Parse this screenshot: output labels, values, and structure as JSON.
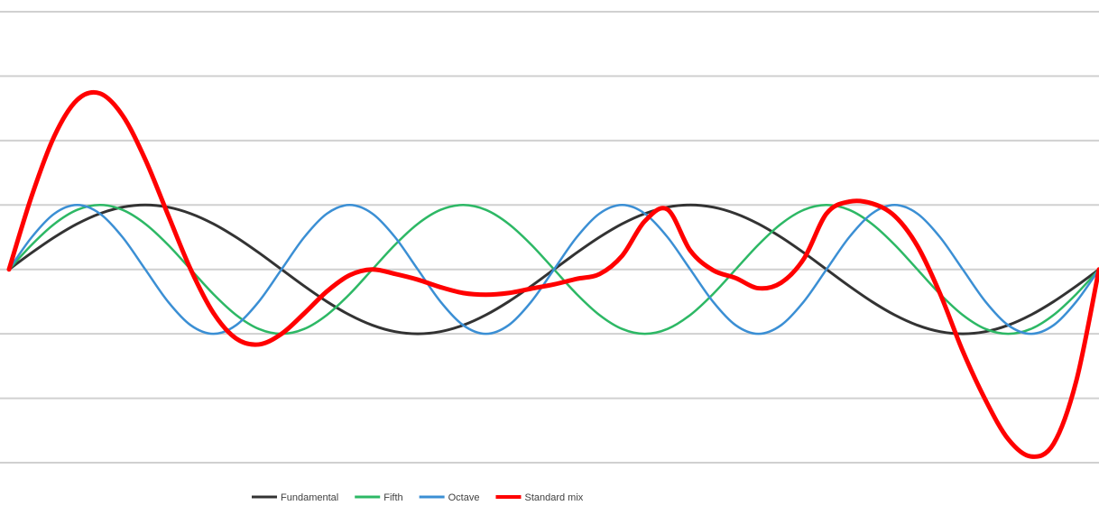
{
  "chart_data": {
    "type": "line",
    "title": "",
    "xlabel": "",
    "ylabel": "",
    "x": [
      0,
      15,
      30,
      45,
      60,
      75,
      90,
      105,
      120,
      135,
      150,
      165,
      180,
      195,
      210,
      225,
      240,
      255,
      270,
      285,
      300,
      315,
      330,
      345,
      360,
      375,
      390,
      405,
      420,
      435,
      450,
      465,
      480,
      495,
      510,
      525,
      540,
      555,
      570,
      585,
      600,
      615,
      630,
      645,
      660,
      675,
      690,
      705,
      720
    ],
    "xlim": [
      0,
      720
    ],
    "ylim": [
      -3,
      4
    ],
    "y_gridlines": [
      -3,
      -2,
      -1,
      0,
      1,
      2,
      3,
      4
    ],
    "grid": true,
    "legend_position": "bottom",
    "series": [
      {
        "name": "Fundamental",
        "color": "#333333",
        "width": 3,
        "values": [
          0,
          0.259,
          0.5,
          0.707,
          0.866,
          0.966,
          1,
          0.966,
          0.866,
          0.707,
          0.5,
          0.259,
          0,
          -0.259,
          -0.5,
          -0.707,
          -0.866,
          -0.966,
          -1,
          -0.966,
          -0.866,
          -0.707,
          -0.5,
          -0.259,
          0,
          0.259,
          0.5,
          0.707,
          0.866,
          0.966,
          1,
          0.966,
          0.866,
          0.707,
          0.5,
          0.259,
          0,
          -0.259,
          -0.5,
          -0.707,
          -0.866,
          -0.966,
          -1,
          -0.966,
          -0.866,
          -0.707,
          -0.5,
          -0.259,
          0
        ]
      },
      {
        "name": "Fifth",
        "color": "#2db865",
        "width": 2.5,
        "values": [
          0,
          0.383,
          0.707,
          0.924,
          1,
          0.924,
          0.707,
          0.383,
          0,
          -0.383,
          -0.707,
          -0.924,
          -1,
          -0.924,
          -0.707,
          -0.383,
          0,
          0.383,
          0.707,
          0.924,
          1,
          0.924,
          0.707,
          0.383,
          0,
          -0.383,
          -0.707,
          -0.924,
          -1,
          -0.924,
          -0.707,
          -0.383,
          0,
          0.383,
          0.707,
          0.924,
          1,
          0.924,
          0.707,
          0.383,
          0,
          -0.383,
          -0.707,
          -0.924,
          -1,
          -0.924,
          -0.707,
          -0.383,
          0
        ]
      },
      {
        "name": "Octave",
        "color": "#3b8fd4",
        "width": 2.5,
        "values": [
          0,
          0.5,
          0.866,
          1,
          0.866,
          0.5,
          0,
          -0.5,
          -0.866,
          -1,
          -0.866,
          -0.5,
          0,
          0.5,
          0.866,
          1,
          0.866,
          0.5,
          0,
          -0.5,
          -0.866,
          -1,
          -0.866,
          -0.5,
          0,
          0.5,
          0.866,
          1,
          0.866,
          0.5,
          0,
          -0.5,
          -0.866,
          -1,
          -0.866,
          -0.5,
          0,
          0.5,
          0.866,
          1,
          0.866,
          0.5,
          0,
          -0.5,
          -0.866,
          -1,
          -0.866,
          -0.5,
          0
        ]
      },
      {
        "name": "Standard mix",
        "color": "#ff0000",
        "width": 5,
        "values": [
          0,
          1.142,
          2.073,
          2.631,
          2.732,
          2.39,
          1.707,
          0.849,
          0,
          -0.676,
          -1.073,
          -1.165,
          -1,
          -0.683,
          -0.341,
          -0.09,
          0,
          -0.07,
          -0.159,
          -0.276,
          -0.366,
          -0.392,
          -0.366,
          -0.298,
          -0.232,
          -0.147,
          -0.073,
          0.212,
          0.75,
          0.93,
          0.293,
          -0.012,
          -0.134,
          -0.292,
          -0.207,
          0.164,
          0.866,
          1.052,
          1.024,
          0.83,
          0.366,
          -0.376,
          -1.268,
          -2.026,
          -2.634,
          -2.904,
          -2.707,
          -1.732,
          0
        ]
      }
    ]
  }
}
